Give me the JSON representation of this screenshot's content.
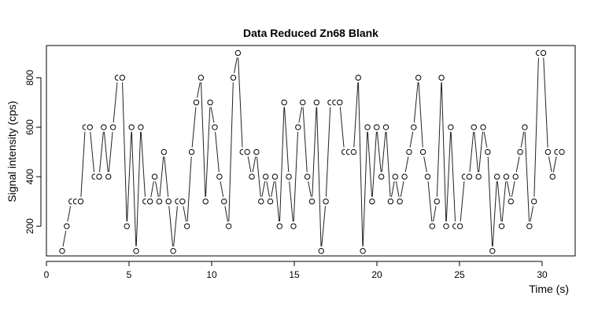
{
  "chart_data": {
    "type": "line",
    "title": "Data Reduced Zn68 Blank",
    "xlabel": "Time (s)",
    "ylabel": "Signal intensity (cps)",
    "xlim": [
      0,
      32
    ],
    "ylim": [
      80,
      930
    ],
    "xticks": [
      0,
      5,
      10,
      15,
      20,
      25,
      30
    ],
    "yticks": [
      200,
      400,
      600,
      800
    ],
    "markers": "open-circle",
    "grid": false,
    "series": [
      {
        "x": [
          0.95,
          1.23,
          1.51,
          1.79,
          2.07,
          2.35,
          2.63,
          2.91,
          3.19,
          3.47,
          3.75,
          4.03,
          4.31,
          4.59,
          4.87,
          5.15,
          5.43,
          5.71,
          5.99,
          6.27,
          6.55,
          6.83,
          7.11,
          7.39,
          7.67,
          7.95,
          8.23,
          8.51,
          8.79,
          9.07,
          9.35,
          9.63,
          9.91,
          10.19,
          10.47,
          10.75,
          11.03,
          11.31,
          11.59,
          11.87,
          12.15,
          12.43,
          12.71,
          12.99,
          13.27,
          13.55,
          13.83,
          14.11,
          14.39,
          14.67,
          14.95,
          15.23,
          15.51,
          15.79,
          16.07,
          16.35,
          16.63,
          16.91,
          17.19,
          17.47,
          17.75,
          18.03,
          18.31,
          18.59,
          18.87,
          19.15,
          19.43,
          19.71,
          19.99,
          20.27,
          20.55,
          20.83,
          21.11,
          21.39,
          21.67,
          21.95,
          22.23,
          22.51,
          22.79,
          23.07,
          23.35,
          23.63,
          23.91,
          24.19,
          24.47,
          24.75,
          25.03,
          25.31,
          25.59,
          25.87,
          26.15,
          26.43,
          26.71,
          26.99,
          27.27,
          27.55,
          27.83,
          28.11,
          28.39,
          28.67,
          28.95,
          29.23,
          29.51,
          29.79,
          30.07,
          30.35,
          30.63,
          30.91,
          31.19
        ],
        "y": [
          100,
          200,
          300,
          300,
          300,
          600,
          600,
          400,
          400,
          600,
          400,
          600,
          800,
          800,
          200,
          600,
          100,
          600,
          300,
          300,
          400,
          300,
          500,
          300,
          100,
          300,
          300,
          200,
          500,
          700,
          800,
          300,
          700,
          600,
          400,
          300,
          200,
          800,
          900,
          500,
          500,
          400,
          500,
          300,
          400,
          300,
          400,
          200,
          700,
          400,
          200,
          600,
          700,
          400,
          300,
          700,
          100,
          300,
          700,
          700,
          700,
          500,
          500,
          500,
          800,
          100,
          600,
          300,
          600,
          400,
          600,
          300,
          400,
          300,
          400,
          500,
          600,
          800,
          500,
          400,
          200,
          300,
          800,
          200,
          600,
          200,
          200,
          400,
          400,
          600,
          400,
          600,
          500,
          100,
          400,
          200,
          400,
          300,
          400,
          500,
          600,
          200,
          300,
          900,
          900,
          500,
          400,
          500,
          500
        ]
      }
    ]
  }
}
